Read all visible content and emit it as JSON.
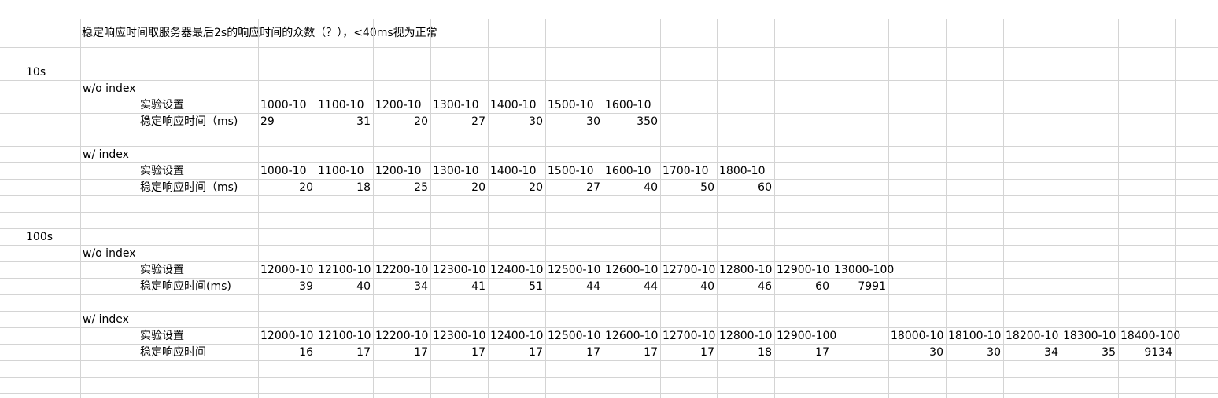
{
  "title": "稳定响应时间取服务器最后2s的响应时间的众数（？），<40ms视为正常",
  "sections": [
    {
      "label": "10s",
      "blocks": [
        {
          "index_label": "w/o index",
          "setting_label": "实验设置",
          "time_label": "稳定响应时间（ms)",
          "settings": [
            "1000-10",
            "1100-10",
            "1200-10",
            "1300-10",
            "1400-10",
            "1500-10",
            "1600-10"
          ],
          "times": [
            "29",
            "31",
            "20",
            "27",
            "30",
            "30",
            "350"
          ]
        },
        {
          "index_label": "w/ index",
          "setting_label": "实验设置",
          "time_label": "稳定响应时间（ms)",
          "settings": [
            "1000-10",
            "1100-10",
            "1200-10",
            "1300-10",
            "1400-10",
            "1500-10",
            "1600-10",
            "1700-10",
            "1800-10"
          ],
          "times": [
            "20",
            "18",
            "25",
            "20",
            "20",
            "27",
            "40",
            "50",
            "60"
          ]
        }
      ]
    },
    {
      "label": "100s",
      "blocks": [
        {
          "index_label": "w/o index",
          "setting_label": "实验设置",
          "time_label": "稳定响应时间(ms)",
          "settings": [
            "12000-10",
            "12100-10",
            "12200-10",
            "12300-10",
            "12400-10",
            "12500-10",
            "12600-10",
            "12700-10",
            "12800-10",
            "12900-10",
            "13000-100"
          ],
          "times": [
            "39",
            "40",
            "34",
            "41",
            "51",
            "44",
            "44",
            "40",
            "46",
            "60",
            "7991"
          ]
        },
        {
          "index_label": "w/ index",
          "setting_label": "实验设置",
          "time_label": "稳定响应时间",
          "settings": [
            "12000-10",
            "12100-10",
            "12200-10",
            "12300-10",
            "12400-10",
            "12500-10",
            "12600-10",
            "12700-10",
            "12800-10",
            "12900-100",
            "",
            "18000-10",
            "18100-10",
            "18200-10",
            "18300-10",
            "18400-100"
          ],
          "times": [
            "16",
            "17",
            "17",
            "17",
            "17",
            "17",
            "17",
            "17",
            "18",
            "17",
            "",
            "30",
            "30",
            "34",
            "35",
            "9134"
          ]
        }
      ]
    }
  ]
}
